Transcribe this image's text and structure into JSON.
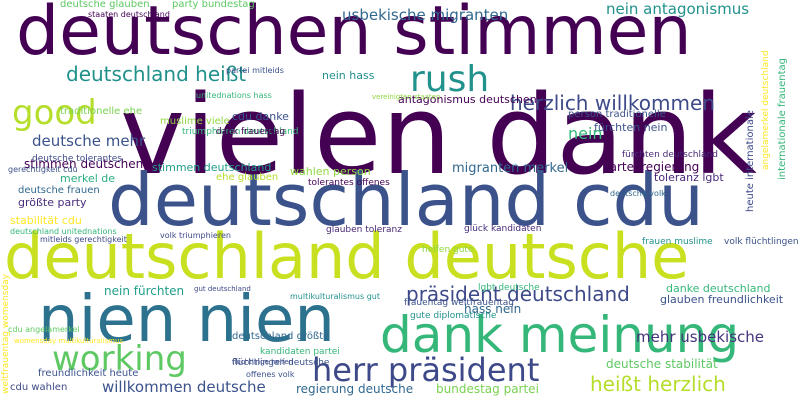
{
  "wordcloud": {
    "words": [
      {
        "text": "deutschen stimmen",
        "color": "#440154"
      },
      {
        "text": "vielen dank",
        "color": "#440154"
      },
      {
        "text": "deutschland cdu",
        "color": "#3b528b"
      },
      {
        "text": "deutschland deutsche",
        "color": "#c8e020"
      },
      {
        "text": "nien nien",
        "color": "#2c728e"
      },
      {
        "text": "dank meinung",
        "color": "#35b779"
      },
      {
        "text": "working",
        "color": "#5ec962"
      },
      {
        "text": "herr präsident",
        "color": "#3e4989"
      },
      {
        "text": "rush",
        "color": "#21918c"
      },
      {
        "text": "good",
        "color": "#b5de2b"
      },
      {
        "text": "deutschland heißt",
        "color": "#21918c"
      },
      {
        "text": "herzlich willkommen",
        "color": "#3e4989"
      },
      {
        "text": "präsident deutschland",
        "color": "#3e4989"
      },
      {
        "text": "heißt herzlich",
        "color": "#b5de2b"
      },
      {
        "text": "usbekische migranten",
        "color": "#31688e"
      },
      {
        "text": "nein antagonismus",
        "color": "#21918c"
      },
      {
        "text": "deutsche mehr",
        "color": "#3b528b"
      },
      {
        "text": "mehr usbekische",
        "color": "#46327e"
      },
      {
        "text": "willkommen deutsche",
        "color": "#3b528b"
      },
      {
        "text": "regierung deutsche",
        "color": "#31688e"
      },
      {
        "text": "bundestag partei",
        "color": "#7ad151"
      },
      {
        "text": "deutsche stabilität",
        "color": "#5ec962"
      },
      {
        "text": "stimmen deutschen",
        "color": "#440154"
      },
      {
        "text": "migranten merkel",
        "color": "#31688e"
      },
      {
        "text": "partei regierung",
        "color": "#440154"
      },
      {
        "text": "nein fürchten",
        "color": "#1f9e89"
      },
      {
        "text": "hass nein",
        "color": "#31688e"
      },
      {
        "text": "danke deutschland",
        "color": "#35b779"
      },
      {
        "text": "glauben freundlichkeit",
        "color": "#3b528b"
      },
      {
        "text": "stimmen deutschland",
        "color": "#1f9e89"
      },
      {
        "text": "wahlen person",
        "color": "#90d743"
      },
      {
        "text": "antagonismus deutschen",
        "color": "#440154"
      },
      {
        "text": "fürchten nein",
        "color": "#3b528b"
      },
      {
        "text": "nein hass",
        "color": "#21918c"
      },
      {
        "text": "größte party",
        "color": "#472c7a"
      },
      {
        "text": "stabilität cdu",
        "color": "#fde725"
      },
      {
        "text": "merkel de",
        "color": "#27ad81"
      },
      {
        "text": "cdu danke",
        "color": "#3b528b"
      },
      {
        "text": "toleranz lgbt",
        "color": "#482878"
      },
      {
        "text": "deutschland größte",
        "color": "#31688e"
      },
      {
        "text": "freundlichkeit heute",
        "color": "#3b528b"
      },
      {
        "text": "cdu wahlen",
        "color": "#3e4989"
      },
      {
        "text": "party bundestag",
        "color": "#5ec962"
      },
      {
        "text": "deutsche glauben",
        "color": "#5ec962"
      },
      {
        "text": "traditionelle ehe",
        "color": "#7ad151"
      },
      {
        "text": "person traditionelle",
        "color": "#3b528b"
      },
      {
        "text": "muslime viele",
        "color": "#90d743"
      },
      {
        "text": "deutsche frauen",
        "color": "#31688e"
      },
      {
        "text": "ehe glauben",
        "color": "#b5de2b"
      },
      {
        "text": "tolerantes offenes",
        "color": "#440154"
      },
      {
        "text": "glauben toleranz",
        "color": "#482878"
      },
      {
        "text": "glück kandidaten",
        "color": "#472c7a"
      },
      {
        "text": "volk flüchtlingen",
        "color": "#3b528b"
      },
      {
        "text": "frauen muslime",
        "color": "#21918c"
      },
      {
        "text": "deutsche tolerantes",
        "color": "#3e4989"
      },
      {
        "text": "fürchten deutschland",
        "color": "#482878"
      },
      {
        "text": "triumphieren deutschland",
        "color": "#35b779"
      },
      {
        "text": "dank frauentag",
        "color": "#440154"
      },
      {
        "text": "frauentag weltfrauentag",
        "color": "#3b528b"
      },
      {
        "text": "flüchtlingen deutsche",
        "color": "#3b528b"
      },
      {
        "text": "kandidaten partei",
        "color": "#35b779"
      },
      {
        "text": "gute diplomatische",
        "color": "#21918c"
      },
      {
        "text": "lgbt deutsche",
        "color": "#35b779"
      },
      {
        "text": "helfen gute",
        "color": "#90d743"
      },
      {
        "text": "offenes volk",
        "color": "#3b528b"
      },
      {
        "text": "weltfrauentag womensday",
        "color": "#fde725"
      },
      {
        "text": "heute internationale",
        "color": "#3e4989"
      },
      {
        "text": "angelamerkel deutschland",
        "color": "#fde725"
      },
      {
        "text": "internationale frauentag",
        "color": "#35b779"
      },
      {
        "text": "cdu angelamerkel",
        "color": "#5ec962"
      },
      {
        "text": "deutschland unitednations",
        "color": "#35b779"
      },
      {
        "text": "gerechtigkeit cdu",
        "color": "#3b528b"
      },
      {
        "text": "mitleids gerechtigkeit",
        "color": "#3e4989"
      },
      {
        "text": "deutsche volk",
        "color": "#31688e"
      },
      {
        "text": "volk triumphieren",
        "color": "#3e4989"
      },
      {
        "text": "unitednations hass",
        "color": "#35b779"
      },
      {
        "text": "partei mitleids",
        "color": "#3b528b"
      },
      {
        "text": "staaten deutschland",
        "color": "#440154"
      },
      {
        "text": "multikulturalismus gut",
        "color": "#21918c"
      },
      {
        "text": "gut deutschland",
        "color": "#3e4989"
      },
      {
        "text": "flüchtlinge helfen",
        "color": "#3e4989"
      },
      {
        "text": "womensday multikulturalismus",
        "color": "#fde725"
      },
      {
        "text": "nein",
        "color": "#35b779"
      },
      {
        "text": "vereinigten staaten",
        "color": "#90d743"
      }
    ]
  }
}
